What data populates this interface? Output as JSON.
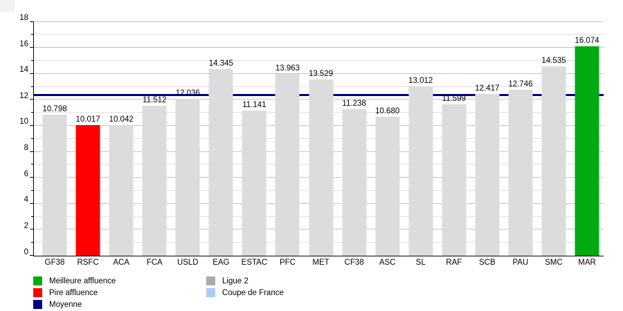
{
  "chart_data": {
    "type": "bar",
    "title": "",
    "xlabel": "",
    "ylabel": "",
    "categories": [
      "GF38",
      "RSFC",
      "ACA",
      "FCA",
      "USLD",
      "EAG",
      "ESTAC",
      "PFC",
      "MET",
      "CF38",
      "ASC",
      "SL",
      "RAF",
      "SCB",
      "PAU",
      "SMC",
      "MAR"
    ],
    "values": [
      10.798,
      10.017,
      10.042,
      11.512,
      12.036,
      14.345,
      11.141,
      13.963,
      13.529,
      11.238,
      10.68,
      13.012,
      11.599,
      12.417,
      12.746,
      14.535,
      16.074
    ],
    "value_labels": [
      "10.798",
      "10.017",
      "10.042",
      "11.512",
      "12.036",
      "14.345",
      "11.141",
      "13.963",
      "13.529",
      "11.238",
      "10.680",
      "13.012",
      "11.599",
      "12.417",
      "12.746",
      "14.535",
      "16.074"
    ],
    "bar_roles": [
      "ligue2",
      "pire",
      "ligue2",
      "ligue2",
      "ligue2",
      "ligue2",
      "ligue2",
      "ligue2",
      "ligue2",
      "ligue2",
      "ligue2",
      "ligue2",
      "ligue2",
      "ligue2",
      "ligue2",
      "ligue2",
      "meilleure"
    ],
    "moyenne": 12.334,
    "ylim": [
      0,
      18
    ],
    "y_tick_labels": [
      "0",
      "2",
      "4",
      "6",
      "8",
      "10",
      "12",
      "14",
      "16",
      "18"
    ],
    "grid": "on",
    "gridline_step": 1,
    "label_step": 2,
    "legend_position": "bottom",
    "legend": {
      "column1": [
        {
          "label": "Meilleure affluence",
          "color_key": "green",
          "icon": "legend-swatch-green"
        },
        {
          "label": "Pire affluence",
          "color_key": "red",
          "icon": "legend-swatch-red"
        },
        {
          "label": "Moyenne",
          "color_key": "navy",
          "icon": "legend-swatch-navy"
        }
      ],
      "column2": [
        {
          "label": "Ligue 2",
          "color_key": "legend_gray",
          "icon": "legend-swatch-gray"
        },
        {
          "label": "Coupe de France",
          "color_key": "light_blue",
          "icon": "legend-swatch-lightblue"
        }
      ]
    }
  },
  "colors": {
    "green": "#00AA11",
    "red": "#FF0000",
    "navy": "#000087",
    "bar_gray": "#DCDCDC",
    "legend_gray": "#ABABAB",
    "light_blue": "#ABCBF5",
    "grid_major": "#c4c4c4",
    "grid_minor": "#e0e0e0",
    "axis": "#000000"
  }
}
